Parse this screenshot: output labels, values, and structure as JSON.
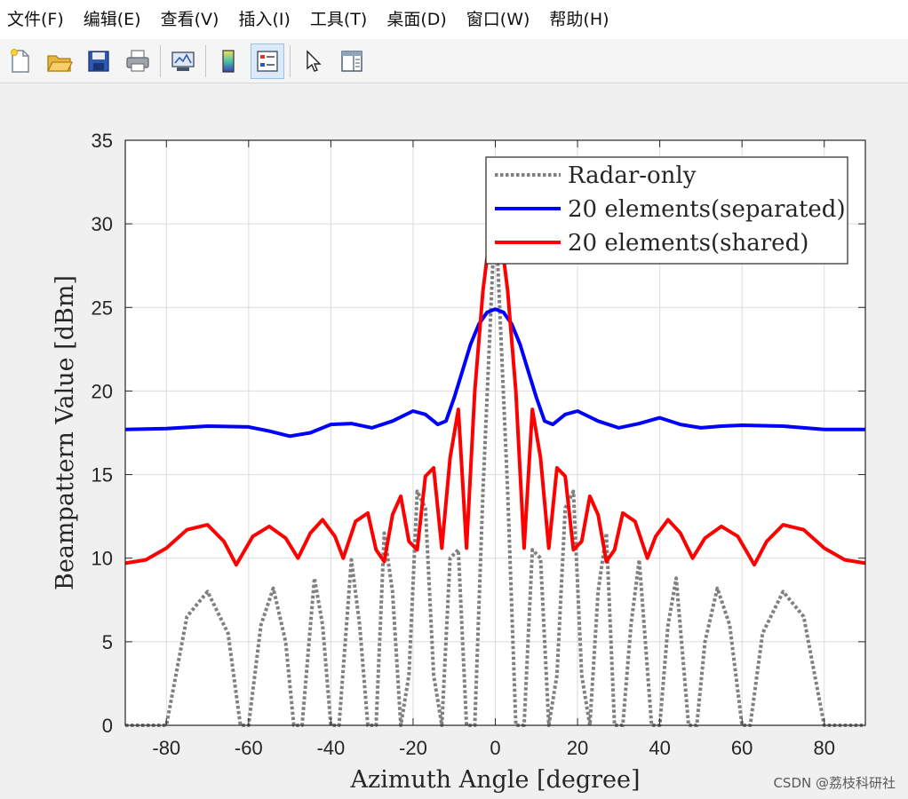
{
  "menu": [
    "文件(F)",
    "编辑(E)",
    "查看(V)",
    "插入(I)",
    "工具(T)",
    "桌面(D)",
    "窗口(W)",
    "帮助(H)"
  ],
  "toolbar": {
    "icons": [
      "new-file-icon",
      "open-folder-icon",
      "save-icon",
      "print-icon",
      "link-plot-icon",
      "colorbar-icon",
      "legend-icon",
      "pointer-icon",
      "property-editor-icon"
    ],
    "active": "legend-icon"
  },
  "watermark": "CSDN @荔枝科研社",
  "chart_data": {
    "type": "line",
    "title": "",
    "xlabel": "Azimuth Angle [degree]",
    "ylabel": "Beampattern Value [dBm]",
    "xlim": [
      -90,
      90
    ],
    "ylim": [
      0,
      35
    ],
    "xticks": [
      -80,
      -60,
      -40,
      -20,
      0,
      20,
      40,
      60,
      80
    ],
    "yticks": [
      0,
      5,
      10,
      15,
      20,
      25,
      30,
      35
    ],
    "grid": true,
    "legend_position": "top-right",
    "series": [
      {
        "name": "Radar-only",
        "color": "#808080",
        "style": "dotted",
        "x": [
          -90,
          -85,
          -80,
          -75,
          -70,
          -65,
          -62,
          -60,
          -57,
          -54,
          -51,
          -49,
          -47,
          -44,
          -42,
          -40,
          -38,
          -35,
          -33,
          -31,
          -29,
          -27,
          -25,
          -23,
          -21,
          -19,
          -17,
          -15,
          -13,
          -11,
          -9,
          -7,
          -5,
          -3,
          0,
          3,
          5,
          7,
          9,
          11,
          13,
          15,
          17,
          19,
          21,
          23,
          25,
          27,
          29,
          31,
          33,
          35,
          38,
          40,
          42,
          44,
          47,
          49,
          51,
          54,
          57,
          60,
          62,
          65,
          70,
          75,
          80,
          85,
          90
        ],
        "y": [
          0,
          0,
          0,
          6.5,
          8,
          5.5,
          0,
          0,
          6,
          8.2,
          5,
          0,
          0,
          8.8,
          6,
          0,
          0,
          9.9,
          6,
          0,
          0,
          11.5,
          8,
          0,
          3,
          14,
          13,
          3,
          0,
          10,
          10.5,
          0,
          0,
          14,
          31,
          14,
          0,
          0,
          10.5,
          10,
          0,
          3,
          13,
          14,
          3,
          0,
          8,
          11.5,
          0,
          0,
          6,
          9.9,
          0,
          0,
          6,
          8.8,
          0,
          0,
          5,
          8.2,
          6,
          0,
          0,
          5.5,
          8,
          6.5,
          0,
          0,
          0
        ]
      },
      {
        "name": "20 elements(separated)",
        "color": "#0000ff",
        "style": "solid",
        "x": [
          -90,
          -80,
          -70,
          -60,
          -55,
          -50,
          -45,
          -40,
          -35,
          -30,
          -25,
          -20,
          -17,
          -14,
          -12,
          -10,
          -8,
          -6,
          -4,
          -2,
          0,
          2,
          4,
          6,
          8,
          10,
          12,
          14,
          17,
          20,
          25,
          30,
          35,
          40,
          45,
          50,
          55,
          60,
          70,
          80,
          90
        ],
        "y": [
          17.7,
          17.75,
          17.9,
          17.85,
          17.6,
          17.3,
          17.5,
          18.0,
          18.05,
          17.8,
          18.2,
          18.8,
          18.6,
          18.0,
          18.2,
          19.6,
          21.2,
          22.8,
          24.0,
          24.7,
          24.9,
          24.7,
          24.0,
          22.8,
          21.2,
          19.6,
          18.2,
          18.0,
          18.6,
          18.8,
          18.2,
          17.8,
          18.05,
          18.4,
          18.0,
          17.8,
          17.9,
          17.95,
          17.9,
          17.7,
          17.7
        ]
      },
      {
        "name": "20 elements(shared)",
        "color": "#ff0000",
        "style": "solid",
        "x": [
          -90,
          -85,
          -80,
          -75,
          -70,
          -66,
          -63,
          -59,
          -55,
          -51,
          -48,
          -45,
          -42,
          -39,
          -37,
          -34,
          -31,
          -29,
          -27,
          -25,
          -23,
          -21,
          -19,
          -17,
          -15,
          -13,
          -11,
          -9,
          -7,
          -5,
          -3,
          -1,
          0,
          1,
          3,
          5,
          7,
          9,
          11,
          13,
          15,
          17,
          19,
          21,
          23,
          25,
          27,
          29,
          31,
          34,
          37,
          39,
          42,
          45,
          48,
          51,
          55,
          59,
          63,
          66,
          70,
          75,
          80,
          85,
          90
        ],
        "y": [
          9.7,
          9.9,
          10.6,
          11.7,
          12.0,
          11.0,
          9.6,
          11.3,
          11.9,
          11.2,
          10.0,
          11.5,
          12.3,
          11.3,
          10.0,
          12.2,
          12.7,
          10.5,
          9.8,
          12.6,
          13.7,
          11.0,
          10.5,
          14.9,
          15.4,
          10.6,
          16.0,
          18.9,
          10.6,
          20.0,
          26.0,
          30.0,
          30.5,
          30.0,
          26.0,
          20.0,
          10.6,
          18.9,
          16.0,
          10.6,
          15.4,
          14.9,
          10.5,
          11.0,
          13.7,
          12.6,
          9.8,
          10.5,
          12.7,
          12.2,
          10.0,
          11.3,
          12.3,
          11.5,
          10.0,
          11.2,
          11.9,
          11.3,
          9.6,
          11.0,
          12.0,
          11.7,
          10.6,
          9.9,
          9.7
        ]
      }
    ]
  }
}
